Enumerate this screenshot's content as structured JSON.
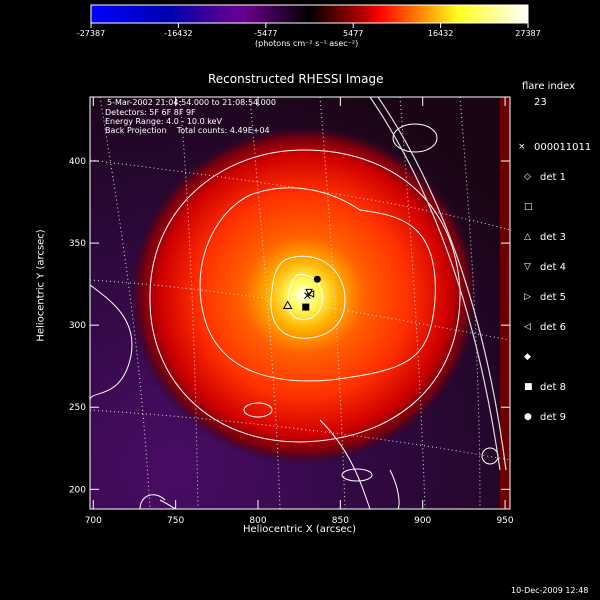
{
  "colorbar": {
    "tick_labels": [
      "-27387",
      "-16432",
      "-5477",
      "5477",
      "16432",
      "27387"
    ],
    "range": [
      -27387,
      27387
    ],
    "units": "(photons cm⁻² s⁻¹ asec⁻²)",
    "colors": [
      "#0000ff",
      "#000090",
      "#700090",
      "#000000",
      "#e00000",
      "#ff8000",
      "#ffff30",
      "#ffffff"
    ]
  },
  "chart_data": {
    "type": "heatmap",
    "title": "Reconstructed RHESSI Image",
    "xlabel": "Heliocentric X (arcsec)",
    "ylabel": "Heliocentric Y (arcsec)",
    "xlim": [
      698,
      953
    ],
    "ylim": [
      188,
      439
    ],
    "xticks": [
      700,
      750,
      800,
      850,
      900,
      950
    ],
    "yticks": [
      200,
      250,
      300,
      350,
      400
    ],
    "grid": false,
    "peak": {
      "x": 832,
      "y": 318
    },
    "annotations": [
      "5-Mar-2002 21:04:54.000 to 21:08:54.000",
      "Detectors: 5F 6F 8F 9F",
      "Energy Range: 4.0 - 10.0 keV",
      "Back Projection    Total counts: 4.49E+04"
    ],
    "markers": [
      {
        "symbol": "triangle-up",
        "x": 818,
        "y": 312
      },
      {
        "symbol": "circle",
        "x": 836,
        "y": 328
      },
      {
        "symbol": "square",
        "x": 829,
        "y": 311
      },
      {
        "symbol": "cross",
        "x": 830,
        "y": 318
      },
      {
        "symbol": "triangle-down",
        "x": 831,
        "y": 320
      },
      {
        "symbol": "triangle-left",
        "x": 832,
        "y": 319
      }
    ]
  },
  "legend": {
    "title": "flare index",
    "index": "23",
    "items": [
      {
        "symbol": "×",
        "label": "000011011"
      },
      {
        "symbol": "◇",
        "label": "det 1"
      },
      {
        "symbol": "□",
        "label": ""
      },
      {
        "symbol": "△",
        "label": "det 3"
      },
      {
        "symbol": "▽",
        "label": "det 4"
      },
      {
        "symbol": "▷",
        "label": "det 5"
      },
      {
        "symbol": "◁",
        "label": "det 6"
      },
      {
        "symbol": "◆",
        "label": ""
      },
      {
        "symbol": "■",
        "label": "det 8"
      },
      {
        "symbol": "●",
        "label": "det 9"
      }
    ]
  },
  "footer": {
    "timestamp": "10-Dec-2009 12:48"
  }
}
